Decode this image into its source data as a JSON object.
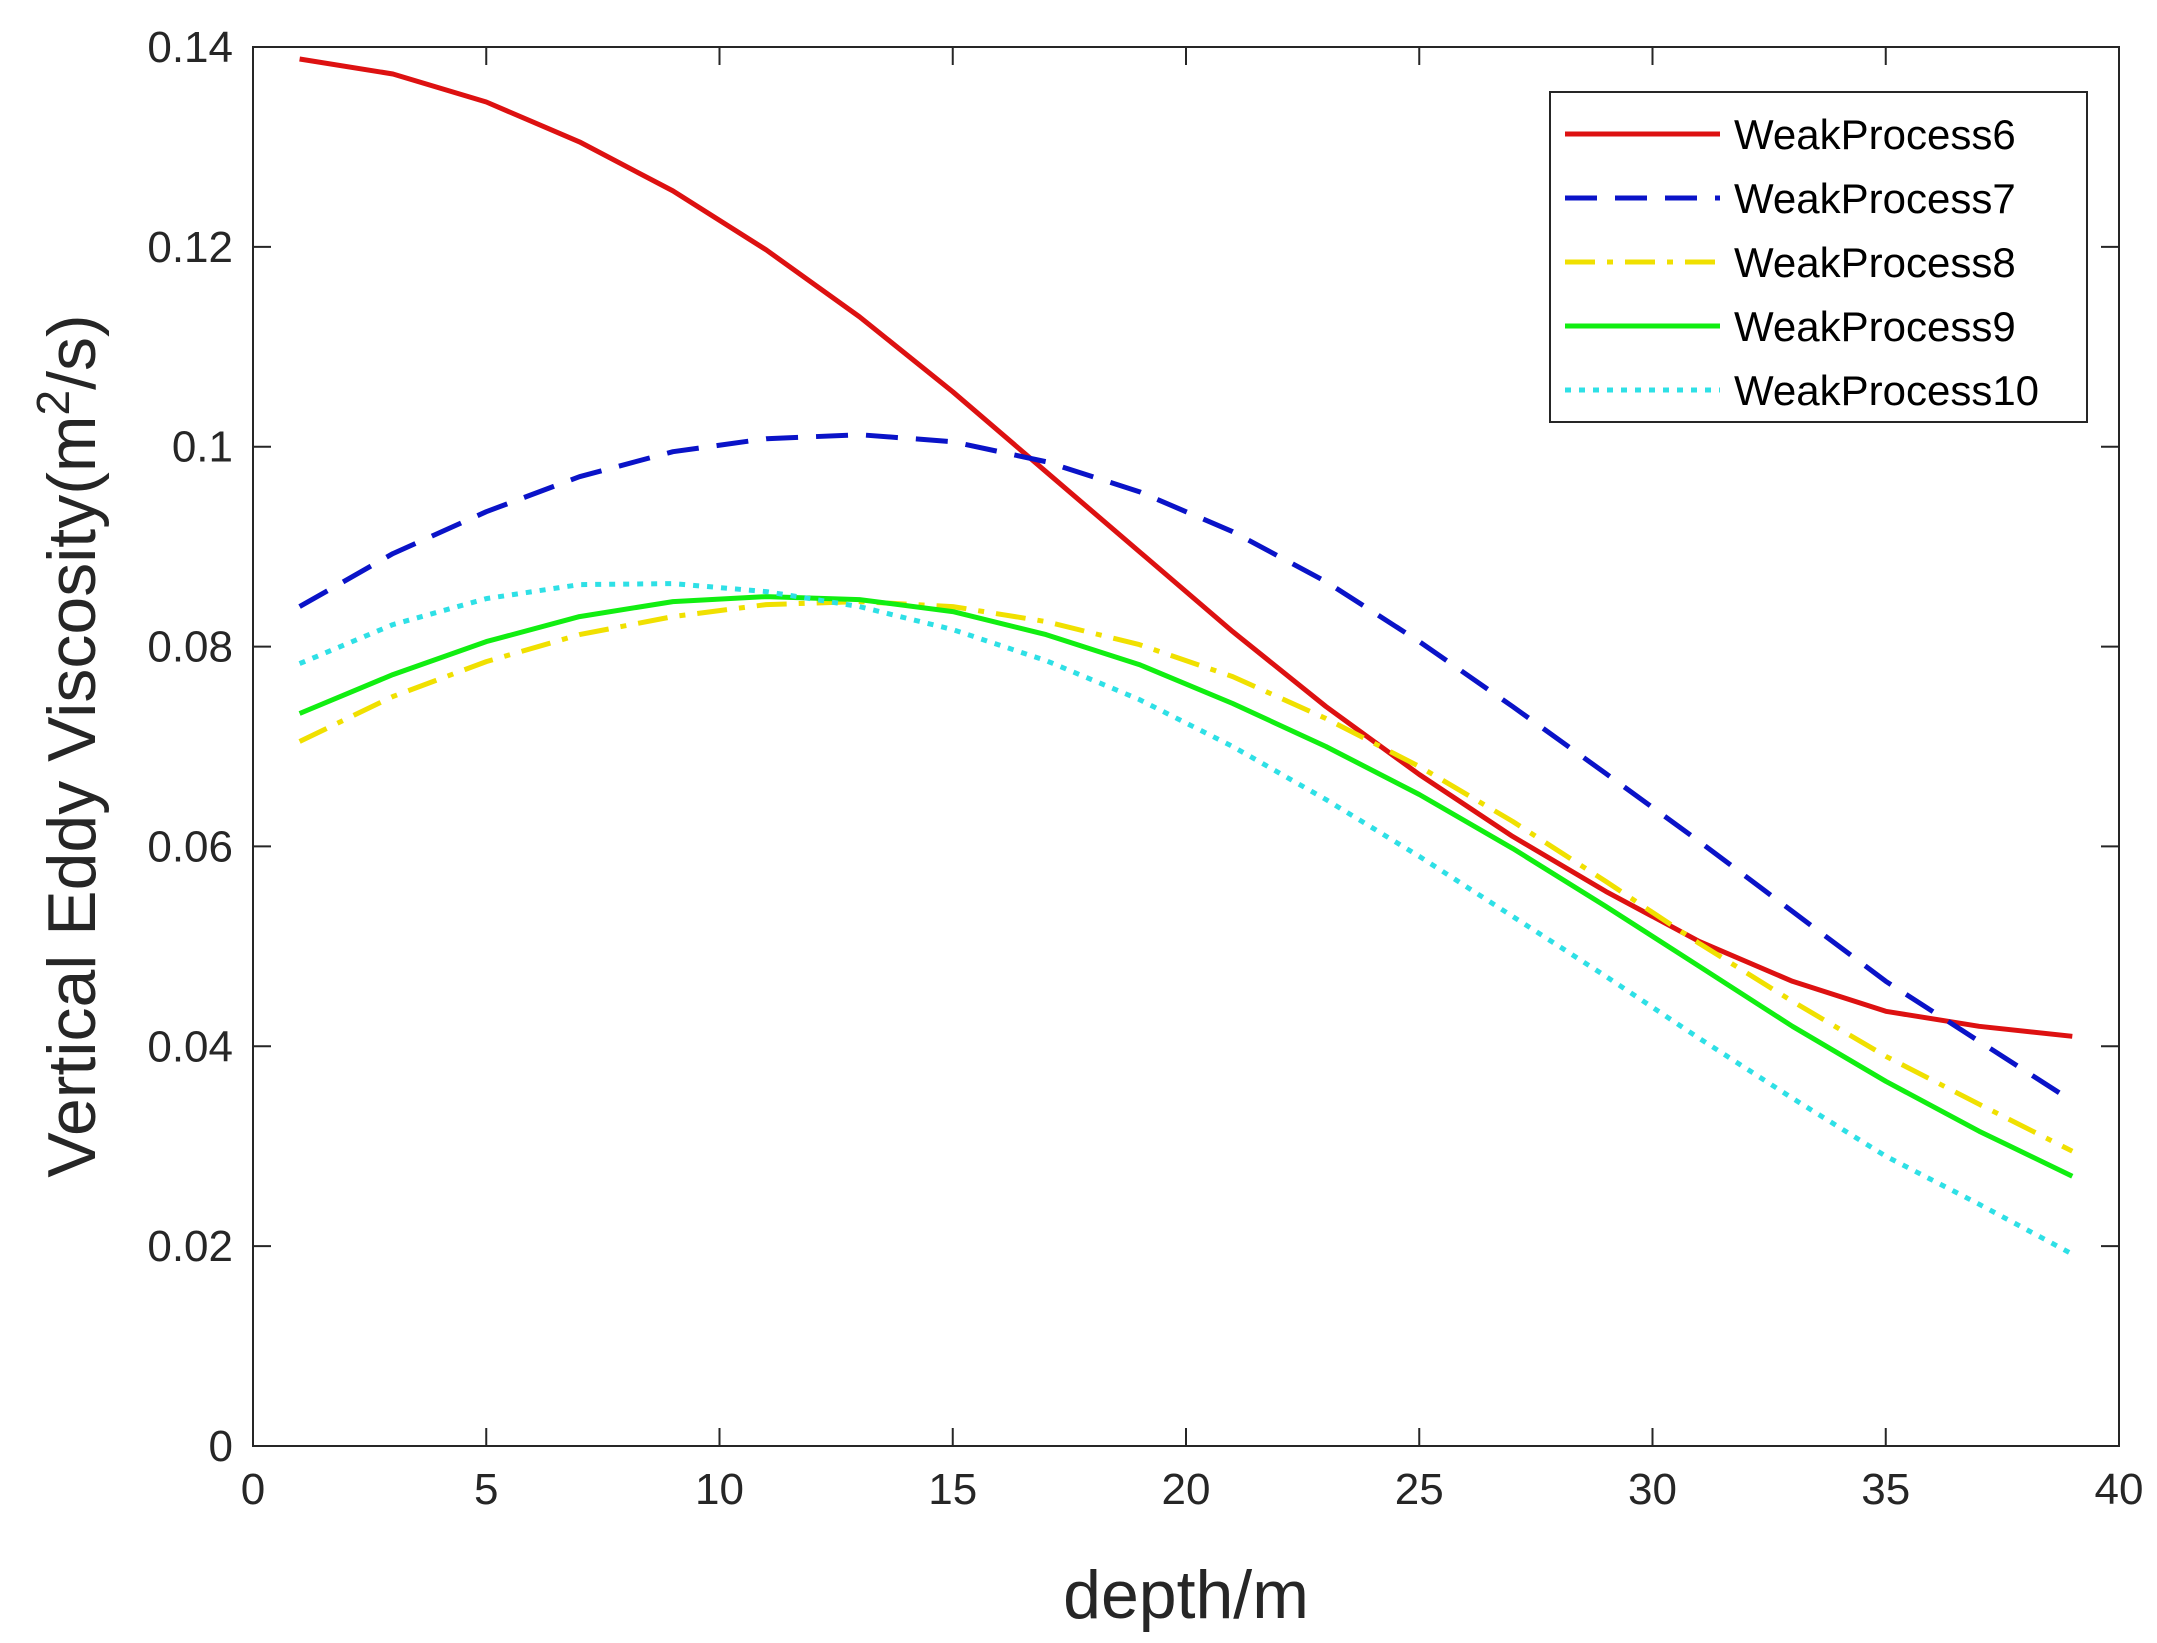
{
  "chart_data": {
    "type": "line",
    "title": "",
    "xlabel": "depth/m",
    "ylabel": {
      "main": "Vertical Eddy Viscosity(m",
      "sup": "2",
      "tail": "/s)"
    },
    "xlim": [
      0,
      40
    ],
    "ylim": [
      0,
      0.14
    ],
    "xticks": [
      0,
      5,
      10,
      15,
      20,
      25,
      30,
      35,
      40
    ],
    "xtick_labels": [
      "0",
      "5",
      "10",
      "15",
      "20",
      "25",
      "30",
      "35",
      "40"
    ],
    "yticks": [
      0,
      0.02,
      0.04,
      0.06,
      0.08,
      0.1,
      0.12,
      0.14
    ],
    "ytick_labels": [
      "0",
      "0.02",
      "0.04",
      "0.06",
      "0.08",
      "0.1",
      "0.12",
      "0.14"
    ],
    "grid": false,
    "legend_position": "top-right",
    "x": [
      1,
      3,
      5,
      7,
      9,
      11,
      13,
      15,
      17,
      19,
      21,
      23,
      25,
      27,
      29,
      31,
      33,
      35,
      37,
      39
    ],
    "series": [
      {
        "name": "WeakProcess6",
        "color": "#dd1111",
        "style": "solid",
        "values": [
          0.1388,
          0.1373,
          0.1345,
          0.1305,
          0.1256,
          0.1197,
          0.113,
          0.1055,
          0.0975,
          0.0895,
          0.0815,
          0.074,
          0.0672,
          0.061,
          0.0555,
          0.0505,
          0.0465,
          0.0435,
          0.042,
          0.041
        ]
      },
      {
        "name": "WeakProcess7",
        "color": "#0a13c8",
        "style": "dashed",
        "values": [
          0.084,
          0.0893,
          0.0935,
          0.097,
          0.0995,
          0.1008,
          0.1012,
          0.1005,
          0.0985,
          0.0955,
          0.0915,
          0.0865,
          0.0805,
          0.074,
          0.0673,
          0.0605,
          0.0535,
          0.0465,
          0.0405,
          0.0345
        ]
      },
      {
        "name": "WeakProcess8",
        "color": "#f0e000",
        "style": "dashdot",
        "values": [
          0.0705,
          0.075,
          0.0785,
          0.0812,
          0.083,
          0.0842,
          0.0845,
          0.084,
          0.0825,
          0.0802,
          0.077,
          0.0728,
          0.068,
          0.0625,
          0.0565,
          0.0503,
          0.0445,
          0.039,
          0.0342,
          0.0295
        ]
      },
      {
        "name": "WeakProcess9",
        "color": "#11ee11",
        "style": "solid",
        "values": [
          0.0733,
          0.0772,
          0.0805,
          0.083,
          0.0845,
          0.085,
          0.0847,
          0.0835,
          0.0812,
          0.0782,
          0.0743,
          0.07,
          0.0652,
          0.0598,
          0.054,
          0.048,
          0.042,
          0.0365,
          0.0315,
          0.027
        ]
      },
      {
        "name": "WeakProcess10",
        "color": "#2ee0e6",
        "style": "dotted",
        "values": [
          0.0783,
          0.0822,
          0.0848,
          0.0862,
          0.0863,
          0.0855,
          0.084,
          0.0817,
          0.0786,
          0.0747,
          0.07,
          0.0647,
          0.059,
          0.053,
          0.047,
          0.0408,
          0.0348,
          0.029,
          0.0242,
          0.0192
        ]
      }
    ]
  }
}
